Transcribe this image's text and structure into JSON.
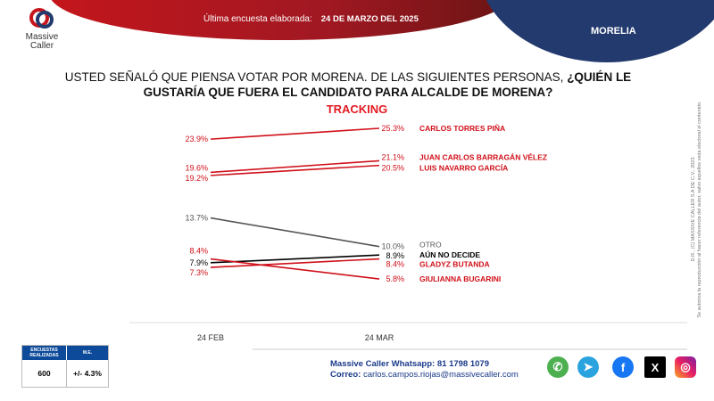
{
  "header": {
    "survey_label": "Última encuesta elaborada:",
    "survey_date": "24 DE MARZO DEL 2025",
    "city": "MORELIA",
    "logo_text_1": "Massive",
    "logo_text_2": "Caller"
  },
  "question": {
    "normal": "USTED SEÑALÓ QUE PIENSA VOTAR POR MORENA.  DE LAS SIGUIENTES PERSONAS, ",
    "bold": "¿QUIÉN LE GUSTARÍA QUE FUERA EL CANDIDATO PARA ALCALDE DE MORENA?"
  },
  "chart_data": {
    "type": "line",
    "title": "TRACKING",
    "categories": [
      "24 FEB",
      "24 MAR"
    ],
    "series": [
      {
        "name": "CARLOS TORRES PIÑA",
        "values": [
          23.9,
          25.3
        ],
        "color": "#d0101a",
        "labels": [
          "23.9%",
          "25.3%"
        ]
      },
      {
        "name": "JUAN CARLOS BARRAGÁN VÉLEZ",
        "values": [
          19.6,
          21.1
        ],
        "color": "#d0101a",
        "labels": [
          "19.6%",
          "21.1%"
        ]
      },
      {
        "name": "LUIS NAVARRO GARCÍA",
        "values": [
          19.2,
          20.5
        ],
        "color": "#d0101a",
        "labels": [
          "19.2%",
          "20.5%"
        ]
      },
      {
        "name": "OTRO",
        "values": [
          13.7,
          10.0
        ],
        "color": "#555555",
        "labels": [
          "13.7%",
          "10.0%"
        ]
      },
      {
        "name": "AÚN NO DECIDE",
        "values": [
          7.9,
          8.9
        ],
        "color": "#000000",
        "labels": [
          "7.9%",
          "8.9%"
        ]
      },
      {
        "name": "GLADYZ BUTANDA",
        "values": [
          7.3,
          8.4
        ],
        "color": "#d0101a",
        "labels": [
          "7.3%",
          "8.4%"
        ]
      },
      {
        "name": "GIULIANNA BUGARINI",
        "values": [
          8.4,
          5.8
        ],
        "color": "#d0101a",
        "labels": [
          "8.4%",
          "5.8%"
        ]
      }
    ]
  },
  "sample": {
    "h1": "ENCUESTAS REALIZADAS",
    "h2": "M.E.",
    "n": "600",
    "me": "+/- 4.3%"
  },
  "contact": {
    "whatsapp_label": "Massive Caller Whatsapp:",
    "whatsapp": "81 1798 1079",
    "email_label": "Correo:",
    "email": "carlos.campos.riojas@massivecaller.com"
  },
  "social": [
    "whatsapp",
    "telegram",
    "facebook",
    "x",
    "instagram"
  ],
  "legal": {
    "line1": "D.R., (C) MASSIVE CALLER S.A DE C.V., 2023",
    "line2": "Se autoriza la reproducción al hacer referencia del autor, salvo aquellos veda electoral el contenido."
  }
}
